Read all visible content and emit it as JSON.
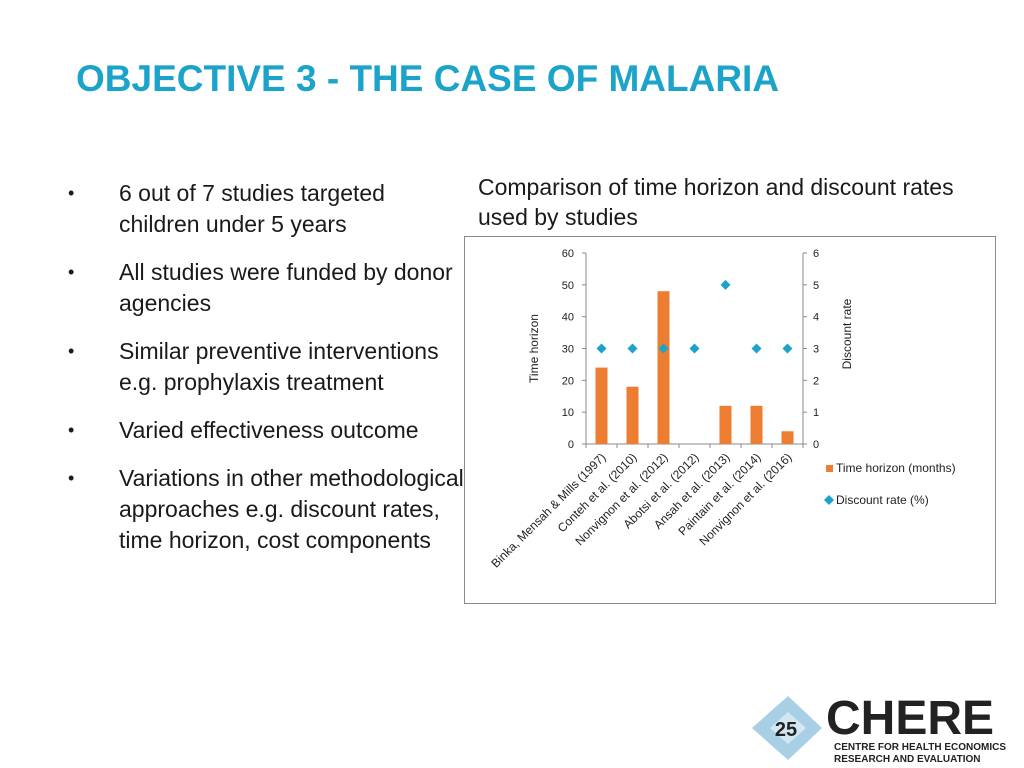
{
  "slide": {
    "title": "OBJECTIVE 3 - THE CASE OF MALARIA"
  },
  "bullets": [
    {
      "text": "6 out of 7 studies targeted children under 5 years"
    },
    {
      "text": "All studies were funded by donor agencies"
    },
    {
      "text": "Similar preventive interventions e.g. prophylaxis treatment"
    },
    {
      "text": "Varied effectiveness outcome"
    },
    {
      "text": "Variations in other methodological approaches e.g. discount rates, time horizon, cost components"
    }
  ],
  "chart_caption": "Comparison of time horizon and discount rates used by studies",
  "chart_data": {
    "type": "bar",
    "categories": [
      "Binka, Mensah & Mills (1997)",
      "Conteh et al. (2010)",
      "Nonvignon et al. (2012)",
      "Abotsi et al. (2012)",
      "Ansah et al. (2013)",
      "Paintain et al. (2014)",
      "Nonvignon et al. (2016)"
    ],
    "series": [
      {
        "name": "Time horizon (months)",
        "type": "bar",
        "axis": "left",
        "color": "#ED7D31",
        "values": [
          24,
          18,
          48,
          0,
          12,
          12,
          4
        ]
      },
      {
        "name": "Discount rate (%)",
        "type": "scatter",
        "axis": "right",
        "color": "#1BA3C9",
        "marker": "diamond",
        "values": [
          3,
          3,
          3,
          3,
          5,
          3,
          3
        ]
      }
    ],
    "ylabel": "Time horizon",
    "y2label": "Discount rate",
    "ylim": [
      0,
      60
    ],
    "y2lim": [
      0,
      6
    ],
    "yticks": [
      0,
      10,
      20,
      30,
      40,
      50,
      60
    ],
    "y2ticks": [
      0,
      1,
      2,
      3,
      4,
      5,
      6
    ],
    "grid": false,
    "legend": "right"
  },
  "logo": {
    "brand": "CHERE",
    "line1": "CENTRE FOR HEALTH ECONOMICS",
    "line2": "RESEARCH AND EVALUATION",
    "badge": "25",
    "color": "#1BA3C9"
  }
}
